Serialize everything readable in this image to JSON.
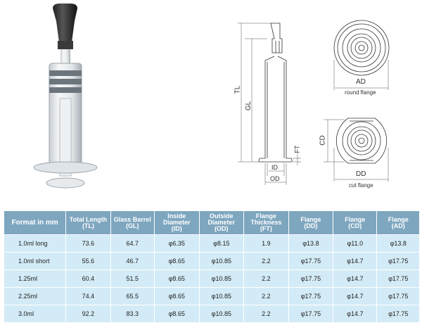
{
  "drawing": {
    "labels": {
      "tl": "TL",
      "gl": "GL",
      "ft": "FT",
      "id": "ID",
      "od": "OD",
      "ad": "AD",
      "cd": "CD",
      "dd": "DD"
    },
    "round_flange": "round flange",
    "cut_flange": "cut flange"
  },
  "table": {
    "headers": [
      [
        "Format in mm"
      ],
      [
        "Total Length",
        "(TL)"
      ],
      [
        "Glass Barrel",
        "(GL)"
      ],
      [
        "Inside",
        "Diameter",
        "(ID)"
      ],
      [
        "Outside",
        "Diameter",
        "(OD)"
      ],
      [
        "Flange",
        "Thickness",
        "(FT)"
      ],
      [
        "Flange",
        "(DD)"
      ],
      [
        "Flange",
        "(CD)"
      ],
      [
        "Flange",
        "(AD)"
      ]
    ],
    "rows": [
      [
        "1.0ml long",
        "73.6",
        "64.7",
        "φ6.35",
        "φ8.15",
        "1.9",
        "φ13.8",
        "φ11.0",
        "φ13.8"
      ],
      [
        "1.0ml short",
        "55.6",
        "46.7",
        "φ8.65",
        "φ10.85",
        "2.2",
        "φ17.75",
        "φ14.7",
        "φ17.75"
      ],
      [
        "1.25ml",
        "60.4",
        "51.5",
        "φ8.65",
        "φ10.85",
        "2.2",
        "φ17.75",
        "φ14.7",
        "φ17.75"
      ],
      [
        "2.25ml",
        "74.4",
        "65.5",
        "φ8.65",
        "φ10.85",
        "2.2",
        "φ17.75",
        "φ14.7",
        "φ17.75"
      ],
      [
        "3.0ml",
        "92.2",
        "83.3",
        "φ8.65",
        "φ10.85",
        "2.2",
        "φ17.75",
        "φ14.7",
        "φ17.75"
      ]
    ],
    "colors": {
      "header": "#7ea6bf",
      "row": "#d3ebf6"
    }
  }
}
